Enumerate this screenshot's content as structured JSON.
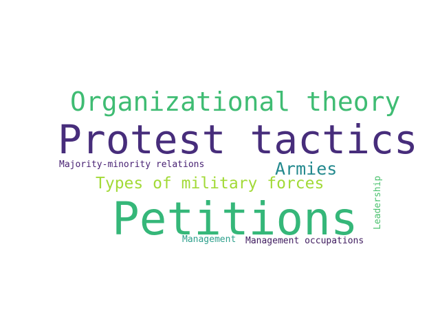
{
  "words": [
    {
      "text": "Organizational theory",
      "color": "#3fbc73"
    },
    {
      "text": "Protest tactics",
      "color": "#472d7b"
    },
    {
      "text": "Majority-minority relations",
      "color": "#482173"
    },
    {
      "text": "Armies",
      "color": "#23898e"
    },
    {
      "text": "Types of military forces",
      "color": "#a2da37"
    },
    {
      "text": "Petitions",
      "color": "#35b779"
    },
    {
      "text": "Leadership",
      "color": "#4ac16d"
    },
    {
      "text": "Management",
      "color": "#2c9f8b"
    },
    {
      "text": "Management occupations",
      "color": "#3e1a5e"
    }
  ]
}
